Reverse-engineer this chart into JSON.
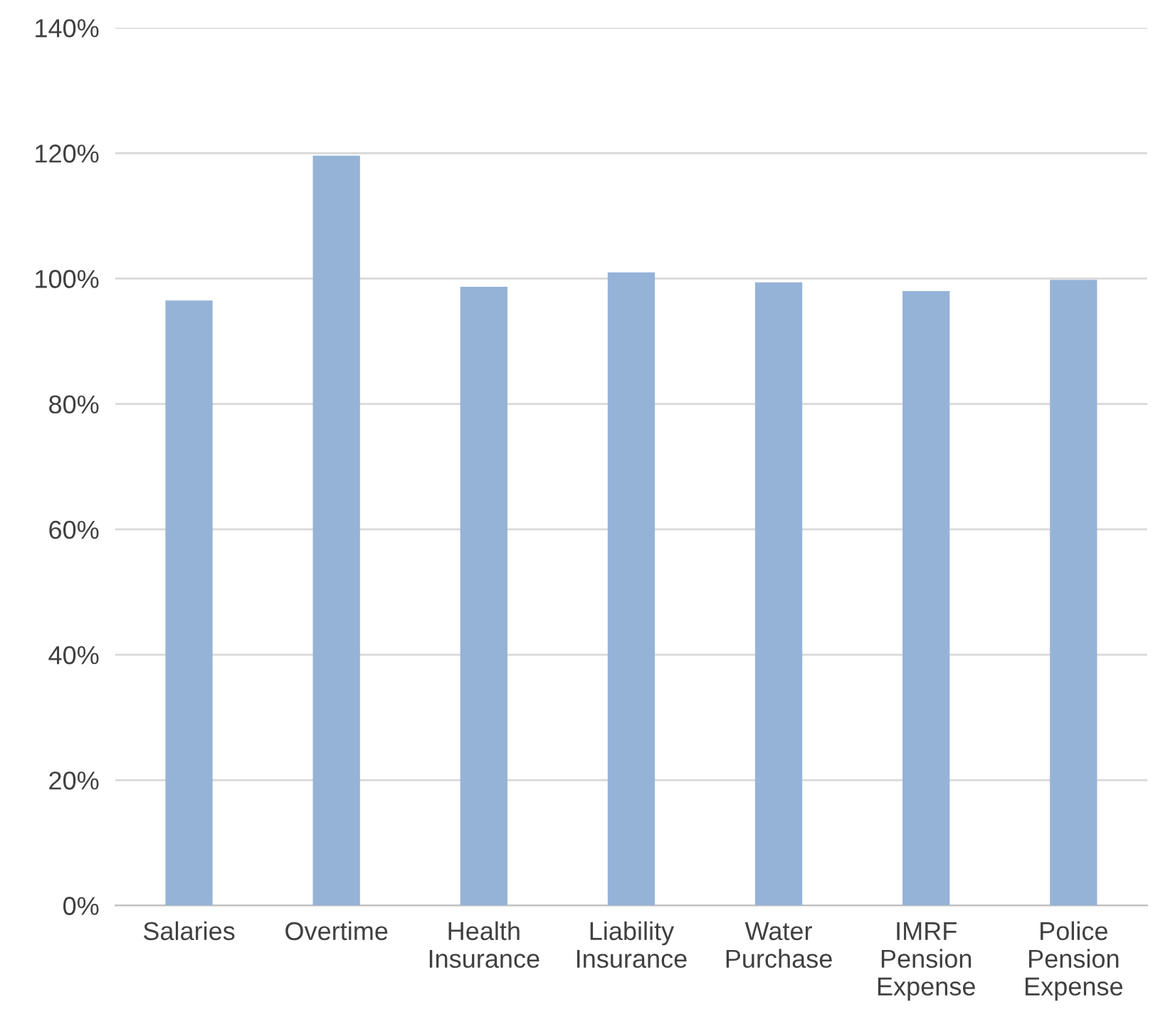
{
  "chart_data": {
    "type": "bar",
    "categories": [
      "Salaries",
      "Overtime",
      "Health\nInsurance",
      "Liability\nInsurance",
      "Water\nPurchase",
      "IMRF\nPension\nExpense",
      "Police\nPension\nExpense"
    ],
    "values": [
      96.5,
      119.6,
      98.7,
      101.0,
      99.4,
      98.0,
      99.8
    ],
    "color": "#95b3d7",
    "ylim": [
      0,
      140
    ],
    "yticks": [
      {
        "value": 0,
        "label": "0%"
      },
      {
        "value": 20,
        "label": "20%"
      },
      {
        "value": 40,
        "label": "40%"
      },
      {
        "value": 60,
        "label": "60%"
      },
      {
        "value": 80,
        "label": "80%"
      },
      {
        "value": 100,
        "label": "100%"
      },
      {
        "value": 120,
        "label": "120%"
      },
      {
        "value": 140,
        "label": "140%"
      }
    ],
    "grid": "y",
    "legend": false
  }
}
